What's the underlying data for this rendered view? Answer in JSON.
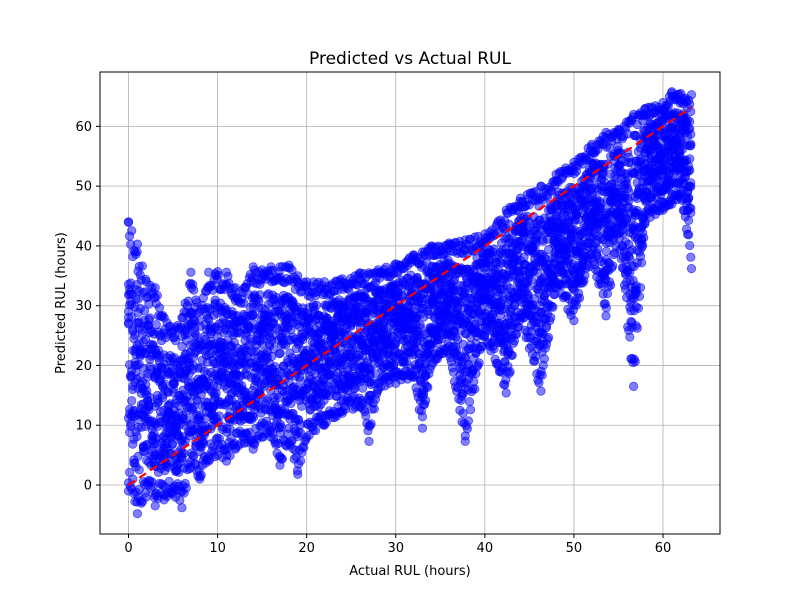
{
  "chart_data": {
    "type": "scatter",
    "title": "Predicted vs Actual RUL",
    "xlabel": "Actual RUL (hours)",
    "ylabel": "Predicted RUL (hours)",
    "xlim": [
      -3.2,
      66.4
    ],
    "ylim": [
      -8.2,
      69.1
    ],
    "xticks": [
      0,
      10,
      20,
      30,
      40,
      50,
      60
    ],
    "yticks": [
      0,
      10,
      20,
      30,
      40,
      50,
      60
    ],
    "grid": true,
    "series": [
      {
        "marker_color": "#0000ff",
        "marker_alpha": 0.5,
        "spread_samples": [
          {
            "x": 0,
            "y_min": -1,
            "y_max": 44
          },
          {
            "x": 1,
            "y_min": -4.8,
            "y_max": 40.3
          },
          {
            "x": 2,
            "y_min": -2,
            "y_max": 34
          },
          {
            "x": 3,
            "y_min": -3.5,
            "y_max": 33
          },
          {
            "x": 4,
            "y_min": -2.5,
            "y_max": 28
          },
          {
            "x": 5,
            "y_min": -1.5,
            "y_max": 26
          },
          {
            "x": 6,
            "y_min": -3.8,
            "y_max": 28
          },
          {
            "x": 7,
            "y_min": 3,
            "y_max": 35.6
          },
          {
            "x": 8,
            "y_min": 1,
            "y_max": 29
          },
          {
            "x": 9,
            "y_min": 4,
            "y_max": 35.6
          },
          {
            "x": 10,
            "y_min": 5,
            "y_max": 35.7
          },
          {
            "x": 11,
            "y_min": 4,
            "y_max": 35.6
          },
          {
            "x": 12,
            "y_min": 6,
            "y_max": 33
          },
          {
            "x": 13,
            "y_min": 7,
            "y_max": 33
          },
          {
            "x": 14,
            "y_min": 6,
            "y_max": 36.5
          },
          {
            "x": 15,
            "y_min": 8,
            "y_max": 36
          },
          {
            "x": 16,
            "y_min": 8,
            "y_max": 36.5
          },
          {
            "x": 17,
            "y_min": 3.3,
            "y_max": 36.5
          },
          {
            "x": 18,
            "y_min": 7,
            "y_max": 36.8
          },
          {
            "x": 19,
            "y_min": 1.8,
            "y_max": 35
          },
          {
            "x": 20,
            "y_min": 8,
            "y_max": 34
          },
          {
            "x": 22,
            "y_min": 10,
            "y_max": 34
          },
          {
            "x": 24,
            "y_min": 12,
            "y_max": 34.5
          },
          {
            "x": 26,
            "y_min": 13,
            "y_max": 35.5
          },
          {
            "x": 27,
            "y_min": 7.3,
            "y_max": 35.5
          },
          {
            "x": 28,
            "y_min": 16,
            "y_max": 36
          },
          {
            "x": 30,
            "y_min": 17,
            "y_max": 37
          },
          {
            "x": 32,
            "y_min": 18,
            "y_max": 38.5
          },
          {
            "x": 33,
            "y_min": 9.5,
            "y_max": 39
          },
          {
            "x": 34,
            "y_min": 20,
            "y_max": 40
          },
          {
            "x": 36,
            "y_min": 22,
            "y_max": 40.5
          },
          {
            "x": 37.8,
            "y_min": 7.3,
            "y_max": 41
          },
          {
            "x": 40,
            "y_min": 25,
            "y_max": 42
          },
          {
            "x": 42.4,
            "y_min": 15.4,
            "y_max": 46
          },
          {
            "x": 44,
            "y_min": 28,
            "y_max": 48
          },
          {
            "x": 46.3,
            "y_min": 15.7,
            "y_max": 50
          },
          {
            "x": 48,
            "y_min": 33,
            "y_max": 52
          },
          {
            "x": 50,
            "y_min": 27.5,
            "y_max": 54
          },
          {
            "x": 52,
            "y_min": 38,
            "y_max": 57
          },
          {
            "x": 53.6,
            "y_min": 28.3,
            "y_max": 59
          },
          {
            "x": 55,
            "y_min": 42,
            "y_max": 59.5
          },
          {
            "x": 56.7,
            "y_min": 16.5,
            "y_max": 62
          },
          {
            "x": 58,
            "y_min": 44,
            "y_max": 63
          },
          {
            "x": 60,
            "y_min": 46,
            "y_max": 64
          },
          {
            "x": 61,
            "y_min": 47,
            "y_max": 65.8
          },
          {
            "x": 62,
            "y_min": 48,
            "y_max": 65.5
          },
          {
            "x": 63.2,
            "y_min": 36.2,
            "y_max": 65.3
          }
        ]
      },
      {
        "kind": "reference_line",
        "line_color": "#ff0000",
        "line_style": "dashed",
        "x": [
          0,
          63.2
        ],
        "y": [
          0,
          63.2
        ]
      }
    ]
  }
}
